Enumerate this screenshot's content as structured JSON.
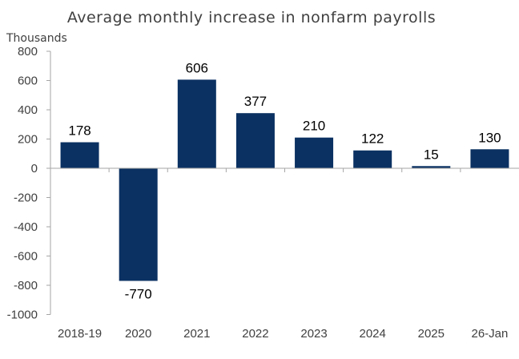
{
  "chart_data": {
    "type": "bar",
    "title": "Average monthly increase in nonfarm payrolls",
    "ylabel": "Thousands",
    "xlabel": "",
    "categories": [
      "2018-19",
      "2020",
      "2021",
      "2022",
      "2023",
      "2024",
      "2025",
      "26-Jan"
    ],
    "values": [
      178,
      -770,
      606,
      377,
      210,
      122,
      15,
      130
    ],
    "data_labels": [
      "178",
      "-770",
      "606",
      "377",
      "210",
      "122",
      "15",
      "130"
    ],
    "ylim": [
      -1000,
      800
    ],
    "yticks": [
      800,
      600,
      400,
      200,
      0,
      -200,
      -400,
      -600,
      -800,
      -1000
    ],
    "ytick_labels": [
      "800",
      "600",
      "400",
      "200",
      "0",
      "-200",
      "-400",
      "-600",
      "-800",
      "-1000"
    ],
    "grid": false,
    "bar_color": "#0b3162",
    "axis_color": "#a6a6a6"
  }
}
